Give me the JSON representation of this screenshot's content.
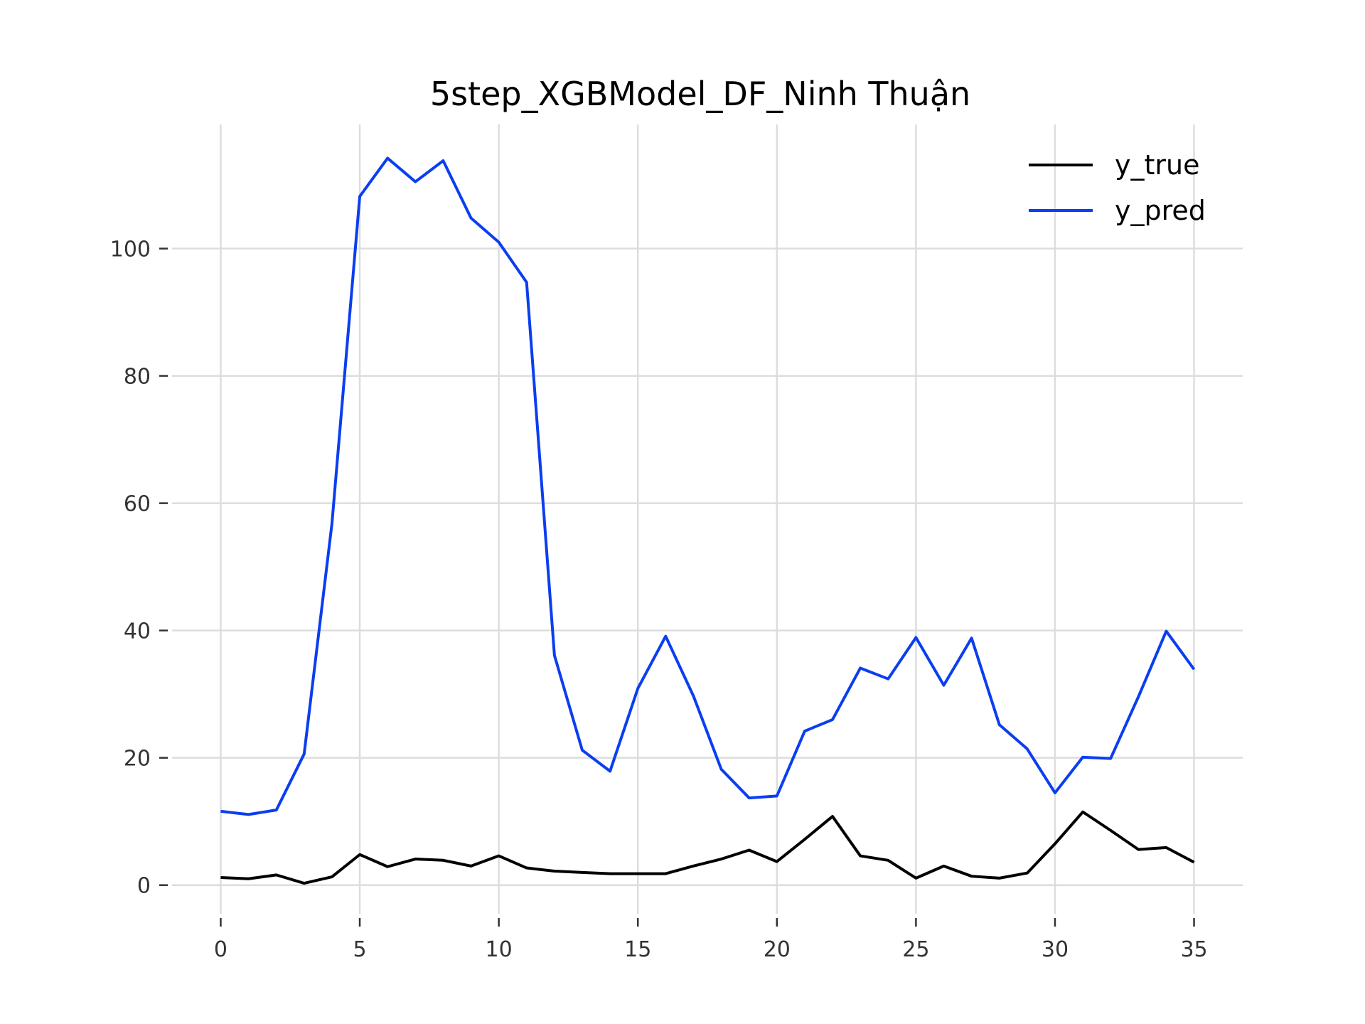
{
  "chart_data": {
    "type": "line",
    "title": "5step_XGBModel_DF_Ninh Thuận",
    "xlabel": "",
    "ylabel": "",
    "x": [
      0,
      1,
      2,
      3,
      4,
      5,
      6,
      7,
      8,
      9,
      10,
      11,
      12,
      13,
      14,
      15,
      16,
      17,
      18,
      19,
      20,
      21,
      22,
      23,
      24,
      25,
      26,
      27,
      28,
      29,
      30,
      31,
      32,
      33,
      34,
      35
    ],
    "xlim": [
      -1.75,
      36.75
    ],
    "ylim": [
      -4.5,
      119.5
    ],
    "xticks": [
      0,
      5,
      10,
      15,
      20,
      25,
      30,
      35
    ],
    "yticks": [
      0,
      20,
      40,
      60,
      80,
      100
    ],
    "grid": true,
    "legend_position": "top-right",
    "series": [
      {
        "name": "y_true",
        "color": "#000000",
        "values": [
          1.2,
          1.0,
          1.6,
          0.3,
          1.3,
          4.8,
          2.9,
          4.1,
          3.9,
          3.0,
          4.6,
          2.7,
          2.2,
          2.0,
          1.8,
          1.8,
          1.8,
          3.0,
          4.1,
          5.5,
          3.7,
          7.2,
          10.8,
          4.6,
          3.9,
          1.1,
          3.0,
          1.4,
          1.1,
          1.9,
          6.5,
          11.5,
          8.6,
          5.6,
          5.9,
          3.6
        ]
      },
      {
        "name": "y_pred",
        "color": "#0b3ef0",
        "values": [
          11.6,
          11.1,
          11.8,
          20.6,
          56.8,
          108.2,
          114.2,
          110.5,
          113.8,
          104.8,
          101.0,
          94.7,
          36.1,
          21.2,
          17.9,
          30.9,
          39.1,
          29.7,
          18.2,
          13.7,
          14.0,
          24.2,
          26.0,
          34.1,
          32.4,
          38.9,
          31.4,
          38.8,
          25.2,
          21.4,
          14.5,
          20.1,
          19.9,
          29.6,
          39.9,
          33.9
        ]
      }
    ]
  }
}
